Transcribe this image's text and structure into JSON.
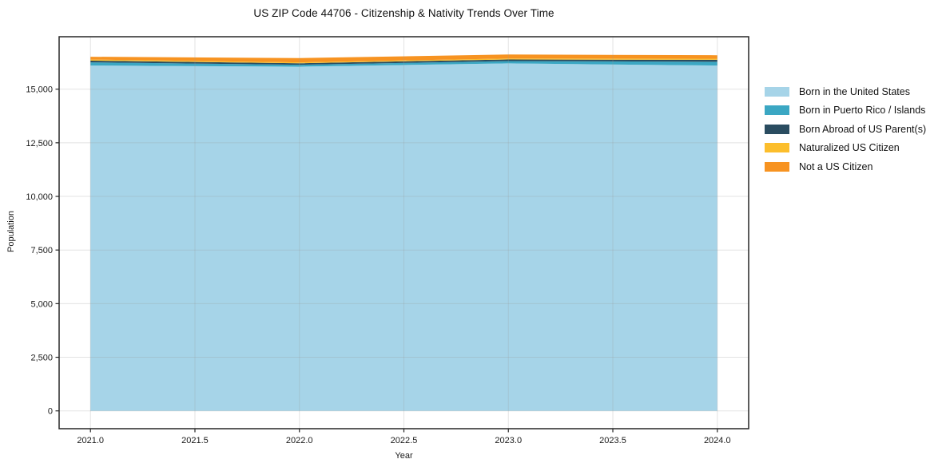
{
  "page": {
    "title": "US ZIP Code 44706 - Citizenship & Nativity Trends Over Time"
  },
  "chart_data": {
    "type": "area",
    "stacked": true,
    "title": "US ZIP Code 44706 - Citizenship & Nativity Trends Over Time",
    "xlabel": "Year",
    "ylabel": "Population",
    "x": [
      2021,
      2022,
      2023,
      2024
    ],
    "series": [
      {
        "name": "Born in the United States",
        "color": "#a6d4e8",
        "values": [
          16100,
          16050,
          16200,
          16100
        ]
      },
      {
        "name": "Born in Puerto Rico / Islands",
        "color": "#3ba7c3",
        "values": [
          150,
          90,
          110,
          175
        ]
      },
      {
        "name": "Born Abroad of US Parent(s)",
        "color": "#2a4c60",
        "values": [
          80,
          70,
          75,
          95
        ]
      },
      {
        "name": "Naturalized US Citizen",
        "color": "#fcbe2c",
        "values": [
          50,
          40,
          45,
          50
        ]
      },
      {
        "name": "Not a US Citizen",
        "color": "#f79321",
        "values": [
          130,
          200,
          185,
          160
        ]
      }
    ],
    "xlim": [
      2020.85,
      2024.15
    ],
    "ylim": [
      -830,
      17445
    ],
    "x_ticks": {
      "values": [
        2021.0,
        2021.5,
        2022.0,
        2022.5,
        2023.0,
        2023.5,
        2024.0
      ],
      "labels": [
        "2021.0",
        "2021.5",
        "2022.0",
        "2022.5",
        "2023.0",
        "2023.5",
        "2024.0"
      ]
    },
    "y_ticks": {
      "values": [
        0,
        2500,
        5000,
        7500,
        10000,
        12500,
        15000
      ],
      "labels": [
        "0",
        "2,500",
        "5,000",
        "7,500",
        "10,000",
        "12,500",
        "15,000"
      ]
    },
    "grid": true,
    "legend_position": "right"
  }
}
